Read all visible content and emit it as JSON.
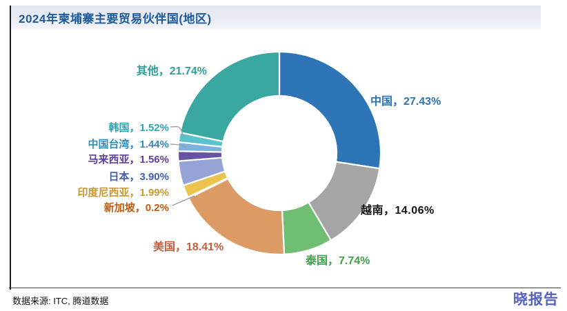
{
  "header": {
    "title": "2024年柬埔寨主要贸易伙伴国(地区)",
    "title_color": "#1e5c99"
  },
  "footer": {
    "source": "数据来源: ITC, 腾道数据",
    "brand": "晓报告",
    "brand_color": "#5563be"
  },
  "chart_data": {
    "type": "pie",
    "donut": true,
    "title": "2024年柬埔寨主要贸易伙伴国(地区)",
    "start_angle_deg": 0,
    "direction": "clockwise",
    "categories": [
      "中国",
      "越南",
      "泰国",
      "美国",
      "新加坡",
      "印度尼西亚",
      "日本",
      "马来西亚",
      "中国台湾",
      "韩国",
      "其他"
    ],
    "values": [
      27.43,
      14.06,
      7.74,
      18.41,
      0.2,
      1.99,
      3.9,
      1.56,
      1.44,
      1.52,
      21.74
    ],
    "slices": [
      {
        "name": "中国",
        "value": 27.43,
        "pct": "27.43%",
        "label": "中国，27.43%",
        "color": "#2e75b8",
        "label_color": "#2e74b5"
      },
      {
        "name": "越南",
        "value": 14.06,
        "pct": "14.06%",
        "label": "越南，14.06%",
        "color": "#a5a5a5",
        "label_color": "#121212"
      },
      {
        "name": "泰国",
        "value": 7.74,
        "pct": "7.74%",
        "label": "泰国，7.74%",
        "color": "#6fbe73",
        "label_color": "#3fa04a"
      },
      {
        "name": "美国",
        "value": 18.41,
        "pct": "18.41%",
        "label": "美国，18.41%",
        "color": "#dc9a64",
        "label_color": "#c2603c"
      },
      {
        "name": "新加坡",
        "value": 0.2,
        "pct": "0.2%",
        "label": "新加坡，0.2%",
        "color": "#dfaf7e",
        "label_color": "#c55a11"
      },
      {
        "name": "印度尼西亚",
        "value": 1.99,
        "pct": "1.99%",
        "label": "印度尼西亚，1.99%",
        "color": "#ebc44f",
        "label_color": "#c9992e"
      },
      {
        "name": "日本",
        "value": 3.9,
        "pct": "3.90%",
        "label": "日本，3.90%",
        "color": "#96a3d7",
        "label_color": "#3e5eb0"
      },
      {
        "name": "马来西亚",
        "value": 1.56,
        "pct": "1.56%",
        "label": "马来西亚，1.56%",
        "color": "#6852a4",
        "label_color": "#5f3f9e"
      },
      {
        "name": "中国台湾",
        "value": 1.44,
        "pct": "1.44%",
        "label": "中国台湾，1.44%",
        "color": "#7eb1dd",
        "label_color": "#2e8fb8"
      },
      {
        "name": "韩国",
        "value": 1.52,
        "pct": "1.52%",
        "label": "韩国，1.52%",
        "color": "#5bc1cc",
        "label_color": "#2aa5b2"
      },
      {
        "name": "其他",
        "value": 21.74,
        "pct": "21.74%",
        "label": "其他，21.74%",
        "color": "#3aa8a0",
        "label_color": "#2e9e96"
      }
    ]
  }
}
